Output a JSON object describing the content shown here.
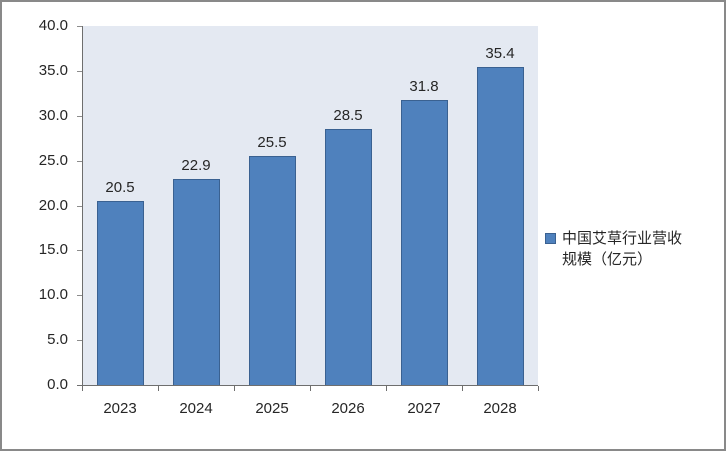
{
  "chart_data": {
    "type": "bar",
    "title": "",
    "categories": [
      "2023",
      "2024",
      "2025",
      "2026",
      "2027",
      "2028"
    ],
    "series": [
      {
        "name": "中国艾草行业营收规模（亿元）",
        "values": [
          20.5,
          22.9,
          25.5,
          28.5,
          31.8,
          35.4
        ],
        "data_labels": [
          "20.5",
          "22.9",
          "25.5",
          "28.5",
          "31.8",
          "35.4"
        ]
      }
    ],
    "xlabel": "",
    "ylabel": "",
    "ylim": [
      0,
      40
    ],
    "ytick_step": 5,
    "ytick_labels": [
      "40.0",
      "35.0",
      "30.0",
      "25.0",
      "20.0",
      "15.0",
      "10.0",
      "5.0",
      "0.0"
    ],
    "grid": true,
    "legend_position": "right",
    "colors": {
      "bar_fill": "#4F81BD",
      "bar_border": "#3A6191",
      "plot_background": "#E4E9F2",
      "gridline": "#8C8C8C",
      "axis": "#6E6E6E",
      "frame_border": "#898989",
      "text": "#262626"
    }
  },
  "legend": {
    "label": "中国艾草行业营收规模（亿元）"
  }
}
